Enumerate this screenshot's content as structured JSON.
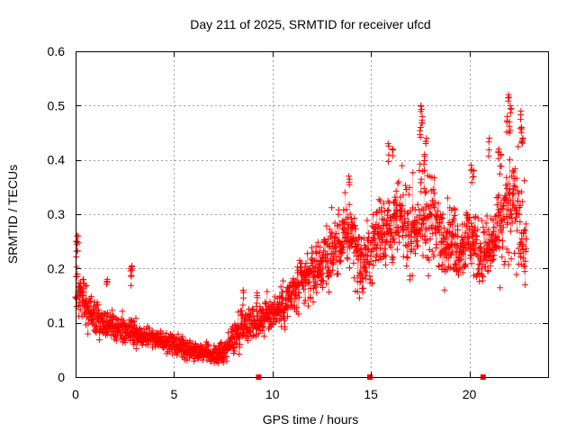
{
  "chart_data": {
    "type": "scatter",
    "title": "Day 211 of 2025, SRMTID for receiver ufcd",
    "xlabel": "GPS time / hours",
    "ylabel": "SRMTID / TECUs",
    "xlim": [
      0,
      24
    ],
    "ylim": [
      0,
      0.6
    ],
    "x_ticks": [
      0,
      5,
      10,
      15,
      20
    ],
    "x_tick_labels": [
      "0",
      "5",
      "10",
      "15",
      "20"
    ],
    "y_ticks": [
      0,
      0.1,
      0.2,
      0.3,
      0.4,
      0.5,
      0.6
    ],
    "y_tick_labels": [
      "0",
      "0.1",
      "0.2",
      "0.3",
      "0.4",
      "0.5",
      "0.6"
    ],
    "grid": true,
    "marker": "plus",
    "series": [
      {
        "name": "SRMTID",
        "color": "#ff0000",
        "trend": {
          "x": [
            0,
            0.25,
            0.5,
            1,
            1.5,
            2,
            2.5,
            3,
            3.5,
            4,
            4.5,
            5,
            5.5,
            6,
            6.5,
            7,
            7.5,
            8,
            8.5,
            9,
            9.5,
            10,
            10.5,
            11,
            11.5,
            12,
            12.5,
            13,
            13.5,
            14,
            14.5,
            15,
            15.5,
            16,
            16.5,
            17,
            17.5,
            18,
            18.5,
            19,
            19.5,
            20,
            20.5,
            21,
            21.5,
            22,
            22.5,
            22.9
          ],
          "y": [
            0.17,
            0.15,
            0.13,
            0.11,
            0.1,
            0.09,
            0.085,
            0.085,
            0.075,
            0.07,
            0.065,
            0.06,
            0.055,
            0.05,
            0.045,
            0.04,
            0.045,
            0.07,
            0.1,
            0.1,
            0.11,
            0.12,
            0.13,
            0.15,
            0.17,
            0.19,
            0.21,
            0.23,
            0.25,
            0.27,
            0.2,
            0.23,
            0.28,
            0.27,
            0.29,
            0.27,
            0.29,
            0.3,
            0.26,
            0.26,
            0.24,
            0.26,
            0.23,
            0.23,
            0.27,
            0.3,
            0.31,
            0.22
          ],
          "spread": [
            0.05,
            0.045,
            0.04,
            0.03,
            0.025,
            0.025,
            0.022,
            0.025,
            0.02,
            0.018,
            0.018,
            0.018,
            0.018,
            0.016,
            0.016,
            0.015,
            0.02,
            0.03,
            0.035,
            0.03,
            0.035,
            0.035,
            0.04,
            0.045,
            0.05,
            0.05,
            0.055,
            0.06,
            0.06,
            0.07,
            0.06,
            0.06,
            0.07,
            0.07,
            0.07,
            0.07,
            0.08,
            0.09,
            0.07,
            0.06,
            0.06,
            0.06,
            0.06,
            0.06,
            0.08,
            0.1,
            0.1,
            0.07
          ]
        },
        "spikes": [
          {
            "x": 0.05,
            "y": 0.25
          },
          {
            "x": 0.1,
            "y": 0.26
          },
          {
            "x": 0.4,
            "y": 0.18
          },
          {
            "x": 1.6,
            "y": 0.18
          },
          {
            "x": 2.8,
            "y": 0.2
          },
          {
            "x": 2.85,
            "y": 0.205
          },
          {
            "x": 8.5,
            "y": 0.16
          },
          {
            "x": 9.2,
            "y": 0.155
          },
          {
            "x": 13.9,
            "y": 0.37
          },
          {
            "x": 15.9,
            "y": 0.43
          },
          {
            "x": 16.1,
            "y": 0.42
          },
          {
            "x": 17.55,
            "y": 0.5
          },
          {
            "x": 17.6,
            "y": 0.48
          },
          {
            "x": 17.5,
            "y": 0.46
          },
          {
            "x": 17.8,
            "y": 0.44
          },
          {
            "x": 17.7,
            "y": 0.41
          },
          {
            "x": 20.1,
            "y": 0.39
          },
          {
            "x": 20.2,
            "y": 0.38
          },
          {
            "x": 21.0,
            "y": 0.44
          },
          {
            "x": 21.5,
            "y": 0.42
          },
          {
            "x": 21.6,
            "y": 0.41
          },
          {
            "x": 21.9,
            "y": 0.48
          },
          {
            "x": 22.0,
            "y": 0.52
          },
          {
            "x": 22.1,
            "y": 0.5
          },
          {
            "x": 22.05,
            "y": 0.47
          },
          {
            "x": 22.6,
            "y": 0.49
          },
          {
            "x": 22.65,
            "y": 0.46
          },
          {
            "x": 22.7,
            "y": 0.44
          }
        ],
        "zero_markers": [
          {
            "x": 9.3,
            "y": 0.0
          },
          {
            "x": 14.95,
            "y": 0.0
          },
          {
            "x": 20.7,
            "y": 0.0
          }
        ]
      }
    ]
  }
}
